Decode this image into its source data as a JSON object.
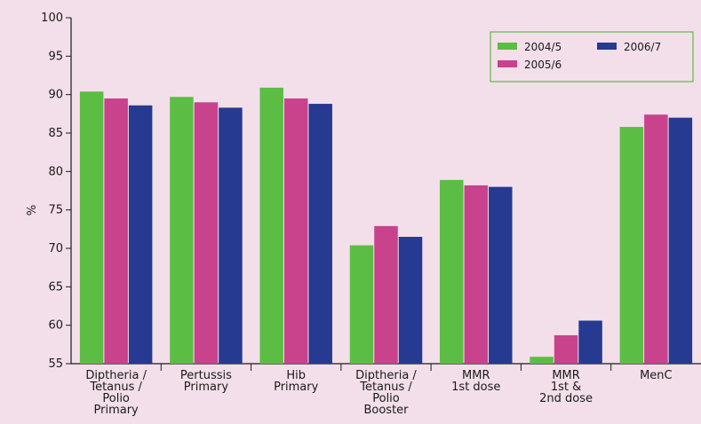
{
  "chart_data": {
    "type": "bar",
    "title": "",
    "xlabel": "",
    "ylabel": "%",
    "ylim": [
      55,
      100
    ],
    "yticks": [
      55,
      60,
      65,
      70,
      75,
      80,
      85,
      90,
      95,
      100
    ],
    "grid": false,
    "legend_position": "top-right",
    "categories": [
      [
        "Diptheria /",
        "Tetanus /",
        "Polio",
        "Primary"
      ],
      [
        "Pertussis",
        "Primary"
      ],
      [
        "Hib",
        "Primary"
      ],
      [
        "Diptheria /",
        "Tetanus /",
        "Polio",
        "Booster"
      ],
      [
        "MMR",
        "1st dose"
      ],
      [
        "MMR",
        "1st &",
        "2nd dose"
      ],
      [
        "MenC"
      ]
    ],
    "series": [
      {
        "name": "2004/5",
        "color": "#5cbd45",
        "values": [
          90.4,
          89.7,
          90.9,
          70.4,
          78.9,
          55.9,
          85.8
        ]
      },
      {
        "name": "2005/6",
        "color": "#c8428c",
        "values": [
          89.5,
          89.0,
          89.5,
          72.9,
          78.2,
          58.7,
          87.4
        ]
      },
      {
        "name": "2006/7",
        "color": "#263a92",
        "values": [
          88.6,
          88.3,
          88.8,
          71.5,
          78.0,
          60.6,
          87.0
        ]
      }
    ],
    "legend_layout": [
      [
        "2004/5",
        "2006/7"
      ],
      [
        "2005/6"
      ]
    ],
    "colors": {
      "axis": "#1a1a1a",
      "legend_border": "#5cbd45",
      "background": "#f3dfe9"
    }
  }
}
